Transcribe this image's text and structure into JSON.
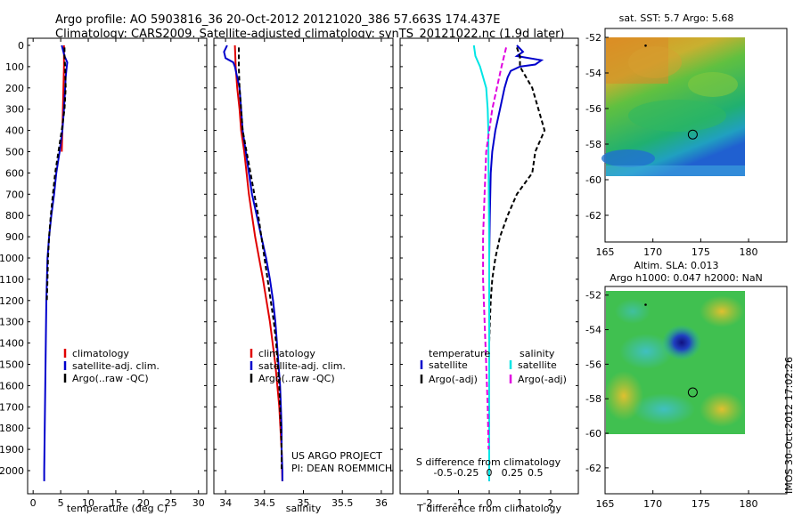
{
  "header": {
    "line1": "Argo profile: AO 5903816_36 20-Oct-2012 20121020_386 57.663S 174.437E",
    "line2": "Climatology: CARS2009. Satellite-adjusted climatology: synTS_20121022.nc (1.9d later)"
  },
  "side_note": "IMOS 30-Oct-2012 17:02:26",
  "colors": {
    "climatology": "#e00000",
    "satellite": "#0000cc",
    "argo": "#000000",
    "cyan": "#00e5e5",
    "magenta": "#e000e0"
  },
  "chart_data": [
    {
      "id": "temperature",
      "type": "line",
      "xlabel": "temperature (deg C)",
      "ylabel": "",
      "xlim": [
        -1,
        31.5
      ],
      "ylim": [
        2050,
        0
      ],
      "xticks": [
        0,
        5,
        10,
        15,
        20,
        25,
        30
      ],
      "xtick_labels": [
        "0",
        "5",
        "10",
        "15",
        "20",
        "25",
        "30"
      ],
      "yticks": [
        0,
        100,
        200,
        300,
        400,
        500,
        600,
        700,
        800,
        900,
        1000,
        1100,
        1200,
        1300,
        1400,
        1500,
        1600,
        1700,
        1800,
        1900,
        2000
      ],
      "ytick_labels": [
        "0",
        "100",
        "200",
        "300",
        "400",
        "500",
        "600",
        "700",
        "800",
        "900",
        "1000",
        "1100",
        "1200",
        "1300",
        "1400",
        "1500",
        "1600",
        "1700",
        "1800",
        "1900",
        "2000"
      ],
      "legend": [
        "climatology",
        "satellite-adj. clim.",
        "Argo(..raw -QC)"
      ],
      "series": [
        {
          "name": "climatology",
          "color": "#e00000",
          "dash": "",
          "depth": [
            0,
            50,
            100,
            200,
            300,
            400,
            500
          ],
          "values": [
            5.6,
            5.6,
            5.6,
            5.5,
            5.4,
            5.3,
            5.2
          ]
        },
        {
          "name": "satellite-adj. clim.",
          "color": "#0000cc",
          "dash": "",
          "depth": [
            0,
            50,
            80,
            100,
            150,
            200,
            300,
            400,
            500,
            600,
            700,
            800,
            900,
            1000,
            1200,
            1400,
            1600,
            1800,
            2000,
            2050
          ],
          "values": [
            5.2,
            5.7,
            6.2,
            6.1,
            5.9,
            5.8,
            5.6,
            5.3,
            4.8,
            4.2,
            3.8,
            3.3,
            2.9,
            2.6,
            2.4,
            2.3,
            2.2,
            2.1,
            2.0,
            2.0
          ]
        },
        {
          "name": "Argo(..raw -QC)",
          "color": "#000000",
          "dash": "5,3",
          "depth": [
            10,
            50,
            100,
            200,
            300,
            400,
            500,
            600,
            700,
            800,
            900,
            1000,
            1100,
            1200
          ],
          "values": [
            5.7,
            5.7,
            5.8,
            5.9,
            5.7,
            5.2,
            4.6,
            4.0,
            3.6,
            3.2,
            2.9,
            2.7,
            2.6,
            2.5
          ]
        }
      ]
    },
    {
      "id": "salinity",
      "type": "line",
      "xlabel": "salinity",
      "ylabel": "",
      "xlim": [
        33.85,
        36.15
      ],
      "ylim": [
        2050,
        0
      ],
      "xticks": [
        34,
        34.5,
        35,
        35.5,
        36
      ],
      "xtick_labels": [
        "34",
        "34.5",
        "35",
        "35.5",
        "36"
      ],
      "legend": [
        "climatology",
        "satellite-adj. clim.",
        "Argo(..raw -QC)"
      ],
      "annotation_lines": [
        "US ARGO PROJECT",
        "PI: DEAN ROEMMICH"
      ],
      "series": [
        {
          "name": "climatology",
          "color": "#e00000",
          "dash": "",
          "depth": [
            0,
            100,
            200,
            300,
            400,
            500,
            700,
            900,
            1100,
            1300,
            1500,
            1700,
            1900,
            2050
          ],
          "values": [
            34.12,
            34.13,
            34.15,
            34.18,
            34.2,
            34.24,
            34.3,
            34.38,
            34.48,
            34.57,
            34.64,
            34.69,
            34.72,
            34.73
          ]
        },
        {
          "name": "satellite-adj. clim.",
          "color": "#0000cc",
          "dash": "",
          "depth": [
            0,
            30,
            60,
            80,
            100,
            150,
            200,
            300,
            400,
            500,
            600,
            700,
            800,
            900,
            1000,
            1100,
            1200,
            1300,
            1400,
            1500,
            1600,
            1700,
            1800,
            1900,
            2000,
            2050
          ],
          "values": [
            34.02,
            33.98,
            34.0,
            34.1,
            34.12,
            34.15,
            34.18,
            34.2,
            34.22,
            34.26,
            34.3,
            34.34,
            34.4,
            34.46,
            34.52,
            34.57,
            34.61,
            34.64,
            34.66,
            34.68,
            34.7,
            34.71,
            34.72,
            34.72,
            34.73,
            34.73
          ]
        },
        {
          "name": "Argo(..raw -QC)",
          "color": "#000000",
          "dash": "5,3",
          "depth": [
            10,
            100,
            200,
            300,
            400,
            500,
            600,
            700,
            800,
            900,
            1000,
            1100,
            1200,
            1300,
            1400,
            1500,
            1600,
            1700,
            1800,
            1900,
            2000
          ],
          "values": [
            34.17,
            34.17,
            34.18,
            34.2,
            34.22,
            34.27,
            34.32,
            34.37,
            34.42,
            34.46,
            34.5,
            34.54,
            34.58,
            34.62,
            34.65,
            34.67,
            34.69,
            34.7,
            34.71,
            34.72,
            34.72
          ]
        }
      ]
    },
    {
      "id": "difference",
      "type": "line",
      "xlabel": "T difference from climatology",
      "xlabel_top": "S difference from climatology",
      "xlim": [
        -2.9,
        2.9
      ],
      "ylim": [
        2050,
        0
      ],
      "xticks": [
        -2,
        -1,
        0,
        1,
        2
      ],
      "xtick_labels": [
        "-2",
        "-1",
        "0",
        "1",
        "2"
      ],
      "xticks_s": [
        -1.5,
        -0.75,
        0,
        0.75,
        1.5
      ],
      "xtick_labels_s": [
        "-0.5",
        "-0.25",
        "0",
        "0.25",
        "0.5"
      ],
      "legend_titles": [
        "temperature",
        "salinity"
      ],
      "legend": [
        "satellite",
        "Argo(-adj)",
        "satellite",
        "Argo(-adj)"
      ],
      "series": [
        {
          "name": "satellite",
          "group": "temperature",
          "color": "#0000cc",
          "dash": "",
          "depth": [
            0,
            30,
            50,
            70,
            90,
            100,
            120,
            150,
            200,
            300,
            400,
            500,
            600,
            800,
            1000,
            1500,
            2000,
            2050
          ],
          "values": [
            0.9,
            1.1,
            0.9,
            1.7,
            1.5,
            1.0,
            0.7,
            0.6,
            0.5,
            0.35,
            0.2,
            0.1,
            0.05,
            0.02,
            0.0,
            0.0,
            0.0,
            0.0
          ]
        },
        {
          "name": "Argo(-adj)",
          "group": "temperature",
          "color": "#000000",
          "dash": "5,3",
          "depth": [
            10,
            50,
            100,
            200,
            300,
            400,
            500,
            600,
            700,
            800,
            900,
            1000,
            1100,
            1200,
            1300,
            1400,
            1500
          ],
          "values": [
            0.9,
            1.0,
            1.0,
            1.4,
            1.6,
            1.8,
            1.5,
            1.4,
            0.9,
            0.6,
            0.35,
            0.2,
            0.1,
            0.05,
            0.02,
            0.0,
            0.0
          ]
        },
        {
          "name": "satellite",
          "group": "salinity",
          "color": "#00e5e5",
          "dash": "",
          "depth": [
            0,
            50,
            100,
            200,
            300,
            400,
            600,
            800,
            1000,
            1500,
            2000,
            2050
          ],
          "values": [
            -0.5,
            -0.45,
            -0.3,
            -0.1,
            -0.05,
            -0.03,
            -0.02,
            -0.01,
            0.0,
            0.0,
            0.0,
            0.0
          ]
        },
        {
          "name": "Argo(-adj)",
          "group": "salinity",
          "color": "#e000e0",
          "dash": "6,3",
          "depth": [
            10,
            100,
            200,
            300,
            400,
            500,
            700,
            900,
            1100,
            1300,
            1500,
            1700,
            1900
          ],
          "values": [
            0.55,
            0.4,
            0.25,
            0.1,
            0.0,
            -0.1,
            -0.15,
            -0.2,
            -0.2,
            -0.15,
            -0.1,
            -0.05,
            -0.02
          ]
        }
      ]
    },
    {
      "id": "map_sst",
      "type": "heatmap",
      "title": "sat. SST: 5.7 Argo: 5.68",
      "xlim": [
        165,
        184
      ],
      "ylim": [
        -63.5,
        -51.5
      ],
      "xticks": [
        165,
        170,
        175,
        180
      ],
      "xtick_labels": [
        "165",
        "170",
        "175",
        "180"
      ],
      "yticks": [
        -52,
        -54,
        -56,
        -58,
        -60,
        -62
      ],
      "ytick_labels": [
        "-52",
        "-54",
        "-56",
        "-58",
        "-60",
        "-62"
      ],
      "data_extent": {
        "lon": [
          165,
          180
        ],
        "lat": [
          -60,
          -51.5
        ]
      },
      "profile_location": {
        "lon": 174.437,
        "lat": -57.663
      },
      "dot_location": {
        "lon": 169.2,
        "lat": -52.6
      }
    },
    {
      "id": "map_sla",
      "type": "heatmap",
      "title": "Altim. SLA: 0.013",
      "subtitle": "Argo h1000: 0.047 h2000: NaN",
      "xlim": [
        165,
        184
      ],
      "ylim": [
        -63.5,
        -51.5
      ],
      "xticks": [
        165,
        170,
        175,
        180
      ],
      "xtick_labels": [
        "165",
        "170",
        "175",
        "180"
      ],
      "yticks": [
        -52,
        -54,
        -56,
        -58,
        -60,
        -62
      ],
      "ytick_labels": [
        "-52",
        "-54",
        "-56",
        "-58",
        "-60",
        "-62"
      ],
      "data_extent": {
        "lon": [
          165,
          180
        ],
        "lat": [
          -60,
          -51.5
        ]
      },
      "profile_location": {
        "lon": 174.437,
        "lat": -57.663
      },
      "dot_location": {
        "lon": 169.2,
        "lat": -52.6
      }
    }
  ]
}
